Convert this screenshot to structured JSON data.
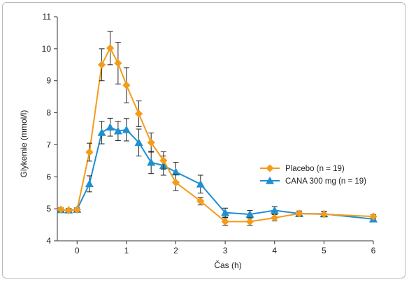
{
  "chart_data": {
    "type": "line",
    "xlabel": "Čas (h)",
    "ylabel": "Glykemie (mmol/l)",
    "xlim": [
      -0.4,
      6
    ],
    "ylim": [
      4,
      11
    ],
    "x_ticks": [
      0,
      1,
      2,
      3,
      4,
      5,
      6
    ],
    "x_tick_labels": [
      "0",
      "1",
      "2",
      "3",
      "4",
      "5",
      "6"
    ],
    "y_ticks": [
      4,
      5,
      6,
      7,
      8,
      9,
      10,
      11
    ],
    "y_tick_labels": [
      "4",
      "5",
      "6",
      "7",
      "8",
      "9",
      "10",
      "11"
    ],
    "grid": false,
    "legend_position": "right",
    "series": [
      {
        "name": "Placebo (n = 19)",
        "color": "#f39c1a",
        "marker": "diamond",
        "points": [
          {
            "x": -0.33,
            "y": 4.98,
            "err": 0.05
          },
          {
            "x": -0.17,
            "y": 4.95,
            "err": 0.05
          },
          {
            "x": 0.0,
            "y": 4.97,
            "err": 0.05
          },
          {
            "x": 0.25,
            "y": 6.77,
            "err": 0.28
          },
          {
            "x": 0.5,
            "y": 9.5,
            "err": 0.5
          },
          {
            "x": 0.67,
            "y": 10.02,
            "err": 0.52
          },
          {
            "x": 0.83,
            "y": 9.55,
            "err": 0.65
          },
          {
            "x": 1.0,
            "y": 8.86,
            "err": 0.55
          },
          {
            "x": 1.25,
            "y": 7.97,
            "err": 0.4
          },
          {
            "x": 1.5,
            "y": 7.07,
            "err": 0.3
          },
          {
            "x": 1.75,
            "y": 6.51,
            "err": 0.27
          },
          {
            "x": 2.0,
            "y": 5.82,
            "err": 0.25
          },
          {
            "x": 2.5,
            "y": 5.24,
            "err": 0.12
          },
          {
            "x": 3.0,
            "y": 4.6,
            "err": 0.12
          },
          {
            "x": 3.5,
            "y": 4.6,
            "err": 0.12
          },
          {
            "x": 4.0,
            "y": 4.72,
            "err": 0.1
          },
          {
            "x": 4.5,
            "y": 4.85,
            "err": 0.08
          },
          {
            "x": 5.0,
            "y": 4.83,
            "err": 0.08
          },
          {
            "x": 6.0,
            "y": 4.76,
            "err": 0.06
          }
        ]
      },
      {
        "name": "CANA 300 mg (n = 19)",
        "color": "#1f8fd1",
        "marker": "triangle",
        "points": [
          {
            "x": -0.33,
            "y": 4.97,
            "err": 0.05
          },
          {
            "x": -0.17,
            "y": 4.96,
            "err": 0.05
          },
          {
            "x": 0.0,
            "y": 4.98,
            "err": 0.05
          },
          {
            "x": 0.25,
            "y": 5.78,
            "err": 0.25
          },
          {
            "x": 0.5,
            "y": 7.38,
            "err": 0.35
          },
          {
            "x": 0.67,
            "y": 7.55,
            "err": 0.28
          },
          {
            "x": 0.83,
            "y": 7.43,
            "err": 0.3
          },
          {
            "x": 1.0,
            "y": 7.47,
            "err": 0.35
          },
          {
            "x": 1.25,
            "y": 7.07,
            "err": 0.42
          },
          {
            "x": 1.5,
            "y": 6.45,
            "err": 0.35
          },
          {
            "x": 1.75,
            "y": 6.35,
            "err": 0.3
          },
          {
            "x": 2.0,
            "y": 6.15,
            "err": 0.3
          },
          {
            "x": 2.5,
            "y": 5.77,
            "err": 0.28
          },
          {
            "x": 3.0,
            "y": 4.88,
            "err": 0.14
          },
          {
            "x": 3.5,
            "y": 4.83,
            "err": 0.12
          },
          {
            "x": 4.0,
            "y": 4.95,
            "err": 0.12
          },
          {
            "x": 4.5,
            "y": 4.85,
            "err": 0.08
          },
          {
            "x": 5.0,
            "y": 4.84,
            "err": 0.08
          },
          {
            "x": 6.0,
            "y": 4.68,
            "err": 0.06
          }
        ]
      }
    ]
  }
}
